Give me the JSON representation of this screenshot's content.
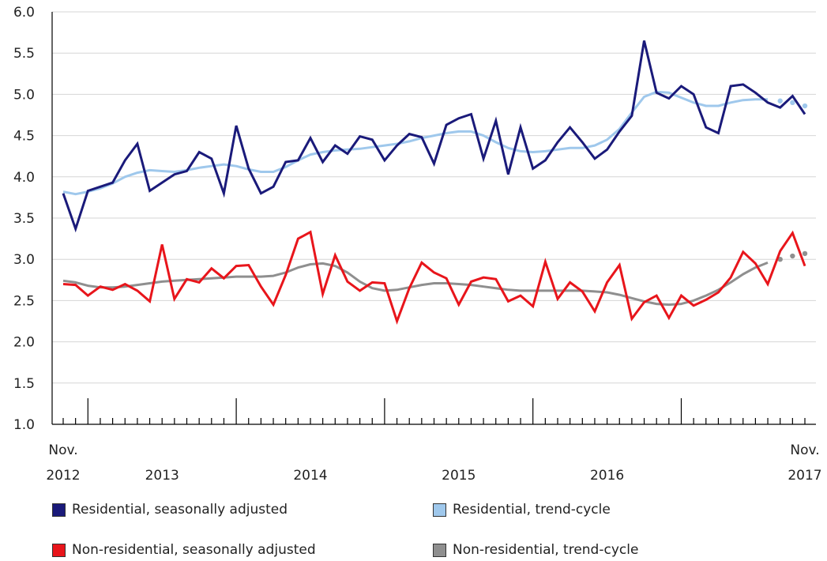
{
  "chart_data": {
    "type": "line",
    "title": "",
    "xlabel": "",
    "ylabel": "",
    "ylim": [
      1.0,
      6.0
    ],
    "yticks": [
      "1.0",
      "1.5",
      "2.0",
      "2.5",
      "3.0",
      "3.5",
      "4.0",
      "4.5",
      "5.0",
      "5.5",
      "6.0"
    ],
    "x_start": "Nov. 2012",
    "x_end": "Nov. 2017",
    "x_tick_labels": [
      {
        "line1": "Nov.",
        "line2": "2012"
      },
      {
        "line1": "",
        "line2": "2013"
      },
      {
        "line1": "",
        "line2": "2014"
      },
      {
        "line1": "",
        "line2": "2015"
      },
      {
        "line1": "",
        "line2": "2016"
      },
      {
        "line1": "Nov.",
        "line2": "2017"
      }
    ],
    "grid": "horizontal",
    "legend_position": "bottom",
    "series": [
      {
        "name": "Residential, seasonally adjusted",
        "color": "#1a1a7a",
        "values": [
          3.8,
          3.37,
          3.83,
          3.88,
          3.93,
          4.2,
          4.4,
          3.83,
          3.93,
          4.03,
          4.07,
          4.3,
          4.22,
          3.8,
          4.62,
          4.1,
          3.8,
          3.88,
          4.18,
          4.2,
          4.47,
          4.18,
          4.38,
          4.28,
          4.49,
          4.45,
          4.2,
          4.38,
          4.52,
          4.48,
          4.16,
          4.63,
          4.71,
          4.76,
          4.22,
          4.68,
          4.03,
          4.6,
          4.1,
          4.2,
          4.42,
          4.6,
          4.42,
          4.22,
          4.33,
          4.55,
          4.74,
          5.65,
          5.02,
          4.95,
          5.1,
          5.0,
          4.6,
          4.53,
          5.1,
          5.12,
          5.02,
          4.9,
          4.84,
          4.98,
          4.76
        ]
      },
      {
        "name": "Residential, trend-cycle",
        "color": "#9fc8ec",
        "values": [
          3.82,
          3.79,
          3.82,
          3.86,
          3.92,
          4.0,
          4.05,
          4.08,
          4.07,
          4.06,
          4.08,
          4.11,
          4.13,
          4.15,
          4.13,
          4.09,
          4.06,
          4.06,
          4.12,
          4.2,
          4.27,
          4.3,
          4.32,
          4.33,
          4.34,
          4.36,
          4.38,
          4.4,
          4.43,
          4.47,
          4.5,
          4.53,
          4.55,
          4.55,
          4.5,
          4.42,
          4.35,
          4.31,
          4.3,
          4.31,
          4.33,
          4.35,
          4.35,
          4.38,
          4.45,
          4.58,
          4.78,
          4.97,
          5.03,
          5.02,
          4.96,
          4.9,
          4.86,
          4.86,
          4.9,
          4.93,
          4.94,
          4.94,
          4.92,
          4.9,
          4.86
        ],
        "projected_from_index": 57
      },
      {
        "name": "Non-residential, seasonally adjusted",
        "color": "#e8151b",
        "values": [
          2.7,
          2.69,
          2.56,
          2.67,
          2.63,
          2.7,
          2.62,
          2.49,
          3.18,
          2.52,
          2.76,
          2.72,
          2.89,
          2.77,
          2.92,
          2.93,
          2.67,
          2.45,
          2.81,
          3.25,
          3.33,
          2.58,
          3.05,
          2.73,
          2.62,
          2.72,
          2.71,
          2.25,
          2.65,
          2.96,
          2.84,
          2.77,
          2.45,
          2.73,
          2.78,
          2.76,
          2.49,
          2.56,
          2.43,
          2.97,
          2.52,
          2.72,
          2.61,
          2.37,
          2.72,
          2.93,
          2.28,
          2.48,
          2.56,
          2.29,
          2.56,
          2.44,
          2.51,
          2.6,
          2.78,
          3.09,
          2.95,
          2.7,
          3.1,
          3.32,
          2.92
        ]
      },
      {
        "name": "Non-residential, trend-cycle",
        "color": "#8f8f8f",
        "values": [
          2.74,
          2.72,
          2.68,
          2.66,
          2.66,
          2.67,
          2.69,
          2.71,
          2.73,
          2.74,
          2.75,
          2.76,
          2.77,
          2.78,
          2.79,
          2.79,
          2.79,
          2.8,
          2.84,
          2.9,
          2.94,
          2.95,
          2.92,
          2.84,
          2.73,
          2.65,
          2.62,
          2.63,
          2.66,
          2.69,
          2.71,
          2.71,
          2.7,
          2.69,
          2.67,
          2.65,
          2.63,
          2.62,
          2.62,
          2.62,
          2.62,
          2.62,
          2.62,
          2.61,
          2.6,
          2.57,
          2.53,
          2.49,
          2.46,
          2.45,
          2.46,
          2.5,
          2.56,
          2.63,
          2.72,
          2.82,
          2.9,
          2.96,
          3.0,
          3.04,
          3.07
        ],
        "projected_from_index": 57
      }
    ]
  }
}
